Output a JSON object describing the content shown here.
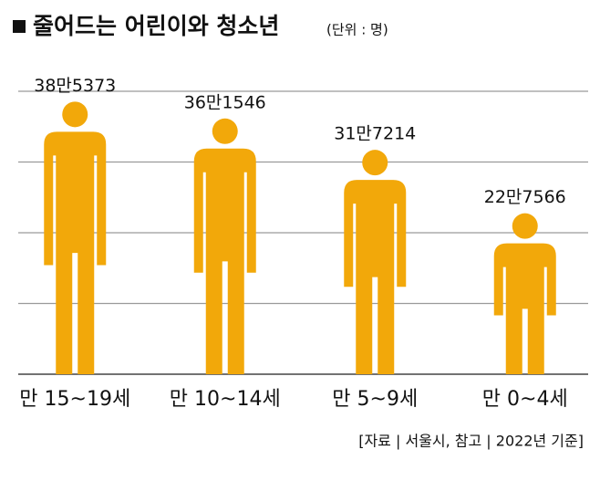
{
  "chart_data": {
    "type": "pictogram",
    "title": "줄어드는 어린이와 청소년",
    "subtitle": "(단위 : 명)",
    "categories": [
      "만 15~19세",
      "만 10~14세",
      "만 5~9세",
      "만 0~4세"
    ],
    "values": [
      385373,
      361546,
      317214,
      227566
    ],
    "value_labels": [
      "38만5373",
      "36만1546",
      "31만7214",
      "22만7566"
    ],
    "color": "#f2a80a",
    "ylim": [
      0,
      400000
    ],
    "yticks": [
      0,
      100000,
      200000,
      300000,
      400000
    ],
    "grid": true,
    "source": "[자료 | 서울시, 참고 | 2022년 기준]"
  }
}
